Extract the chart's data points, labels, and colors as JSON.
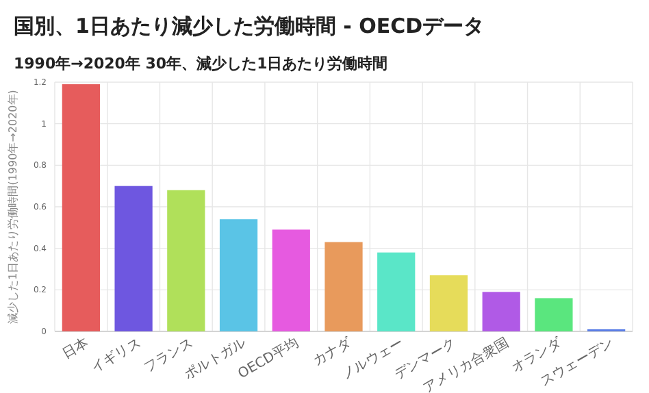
{
  "chart_data": {
    "type": "bar",
    "title": "国別、1日あたり減少した労働時間 - OECDデータ",
    "subtitle": "1990年→2020年 30年、減少した1日あたり労働時間",
    "ylabel": "減少した1日あたり労働時間(1990年→2020年)",
    "categories": [
      "日本",
      "イギリス",
      "フランス",
      "ポルトガル",
      "OECD平均",
      "カナダ",
      "ノルウェー",
      "デンマーク",
      "アメリカ合衆国",
      "オランダ",
      "スウェーデン"
    ],
    "values": [
      1.19,
      0.7,
      0.68,
      0.54,
      0.49,
      0.43,
      0.38,
      0.27,
      0.19,
      0.16,
      0.01
    ],
    "colors": [
      "#e65c5c",
      "#6e57e0",
      "#b0e05a",
      "#5ac4e6",
      "#e65ae0",
      "#e89a5c",
      "#5ae6c8",
      "#e6dc5a",
      "#b05ae6",
      "#5ae67e",
      "#5a7ee6"
    ],
    "ylim": [
      0,
      1.2
    ],
    "yticks": [
      0,
      0.2,
      0.4,
      0.6,
      0.8,
      1.0,
      1.2
    ],
    "grid": true
  }
}
